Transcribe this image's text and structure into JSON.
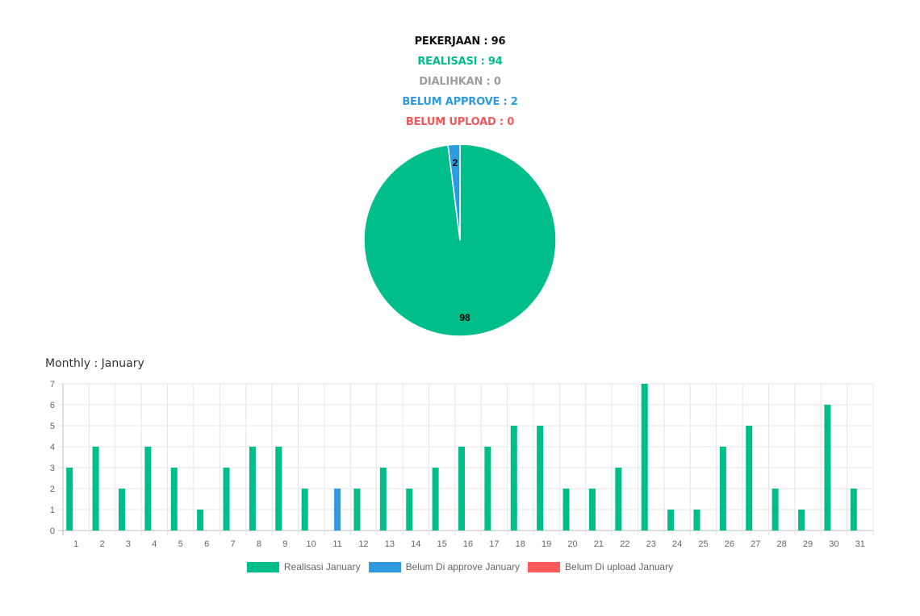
{
  "summary": {
    "pekerjaan": "PEKERJAAN : 96",
    "realisasi": "REALISASI : 94",
    "dialihkan": "DIALIHKAN : 0",
    "belum_approve": "BELUM APPROVE : 2",
    "belum_upload": "BELUM UPLOAD : 0"
  },
  "monthly": {
    "title": "Monthly : January"
  },
  "colors": {
    "realisasi": "#00be89",
    "belum_approve": "#2e9be0",
    "belum_upload": "#ff5a5a"
  },
  "chart_data": [
    {
      "type": "pie",
      "slices": [
        {
          "value": 98,
          "label": "98",
          "color": "#00be89"
        },
        {
          "value": 2,
          "label": "2",
          "color": "#2e9be0"
        }
      ]
    },
    {
      "type": "bar",
      "categories": [
        "1",
        "2",
        "3",
        "4",
        "5",
        "6",
        "7",
        "8",
        "9",
        "10",
        "11",
        "12",
        "13",
        "14",
        "15",
        "16",
        "17",
        "18",
        "19",
        "20",
        "21",
        "22",
        "23",
        "24",
        "25",
        "26",
        "27",
        "28",
        "29",
        "30",
        "31"
      ],
      "series": [
        {
          "name": "Realisasi January",
          "color": "#00be89",
          "values": [
            3,
            4,
            2,
            4,
            3,
            1,
            3,
            4,
            4,
            2,
            0,
            2,
            3,
            2,
            3,
            4,
            4,
            5,
            5,
            2,
            2,
            3,
            7,
            1,
            1,
            4,
            5,
            2,
            1,
            6,
            2
          ]
        },
        {
          "name": "Belum Di approve January",
          "color": "#2e9be0",
          "values": [
            0,
            0,
            0,
            0,
            0,
            0,
            0,
            0,
            0,
            0,
            2,
            0,
            0,
            0,
            0,
            0,
            0,
            0,
            0,
            0,
            0,
            0,
            0,
            0,
            0,
            0,
            0,
            0,
            0,
            0,
            0
          ]
        },
        {
          "name": "Belum Di upload January",
          "color": "#ff5a5a",
          "values": [
            0,
            0,
            0,
            0,
            0,
            0,
            0,
            0,
            0,
            0,
            0,
            0,
            0,
            0,
            0,
            0,
            0,
            0,
            0,
            0,
            0,
            0,
            0,
            0,
            0,
            0,
            0,
            0,
            0,
            0,
            0
          ]
        }
      ],
      "yticks": [
        "0",
        "1",
        "2",
        "3",
        "4",
        "5",
        "6",
        "7"
      ],
      "ylim": [
        0,
        7
      ],
      "grid": true,
      "legend": "bottom"
    }
  ]
}
